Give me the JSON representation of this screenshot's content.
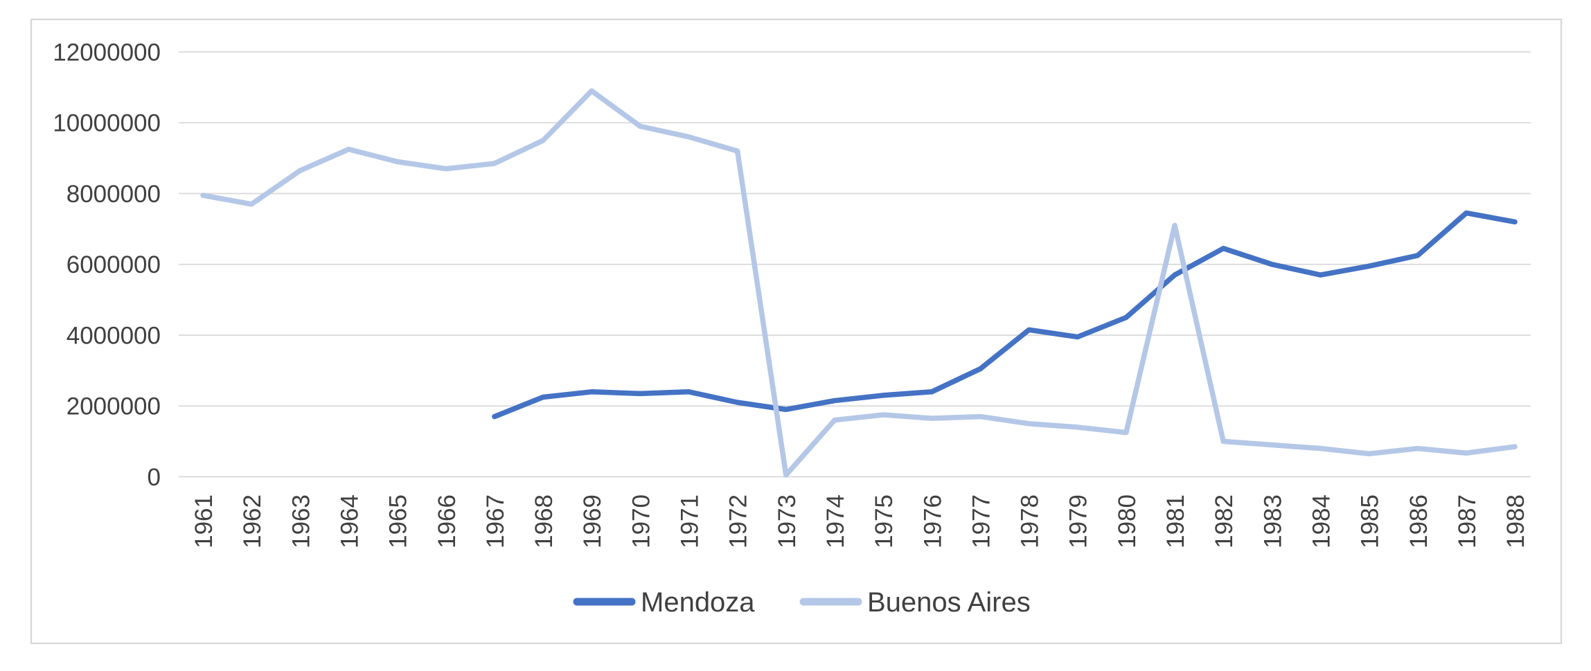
{
  "chart_data": {
    "type": "line",
    "title": "",
    "xlabel": "",
    "ylabel": "",
    "ylim": [
      0,
      12000000
    ],
    "y_tick_values": [
      0,
      2000000,
      4000000,
      6000000,
      8000000,
      10000000,
      12000000
    ],
    "y_tick_labels": [
      "0",
      "2000000",
      "4000000",
      "6000000",
      "8000000",
      "10000000",
      "12000000"
    ],
    "grid": true,
    "legend_position": "bottom",
    "categories": [
      "1961",
      "1962",
      "1963",
      "1964",
      "1965",
      "1966",
      "1967",
      "1968",
      "1969",
      "1970",
      "1971",
      "1972",
      "1973",
      "1974",
      "1975",
      "1976",
      "1977",
      "1978",
      "1979",
      "1980",
      "1981",
      "1982",
      "1983",
      "1984",
      "1985",
      "1986",
      "1987",
      "1988"
    ],
    "series": [
      {
        "name": "Mendoza",
        "color": "#4472C4",
        "values": [
          null,
          null,
          null,
          null,
          null,
          null,
          1700000,
          2250000,
          2400000,
          2350000,
          2400000,
          2100000,
          1900000,
          2150000,
          2300000,
          2400000,
          3050000,
          4150000,
          3950000,
          4500000,
          5700000,
          6450000,
          6000000,
          5700000,
          5950000,
          6250000,
          7450000,
          7200000
        ]
      },
      {
        "name": "Buenos Aires",
        "color": "#B4C7E7",
        "values": [
          7950000,
          7700000,
          8650000,
          9250000,
          8900000,
          8700000,
          8850000,
          9500000,
          10900000,
          9900000,
          9600000,
          9200000,
          50000,
          1600000,
          1750000,
          1650000,
          1700000,
          1500000,
          1400000,
          1250000,
          7100000,
          1000000,
          900000,
          800000,
          650000,
          800000,
          670000,
          850000
        ]
      }
    ]
  },
  "legend": {
    "items": [
      {
        "label": "Mendoza"
      },
      {
        "label": "Buenos Aires"
      }
    ]
  },
  "colors": {
    "grid": "#D9D9D9",
    "frame": "#D9D9D9",
    "text": "#404040",
    "background": "#FFFFFF"
  }
}
